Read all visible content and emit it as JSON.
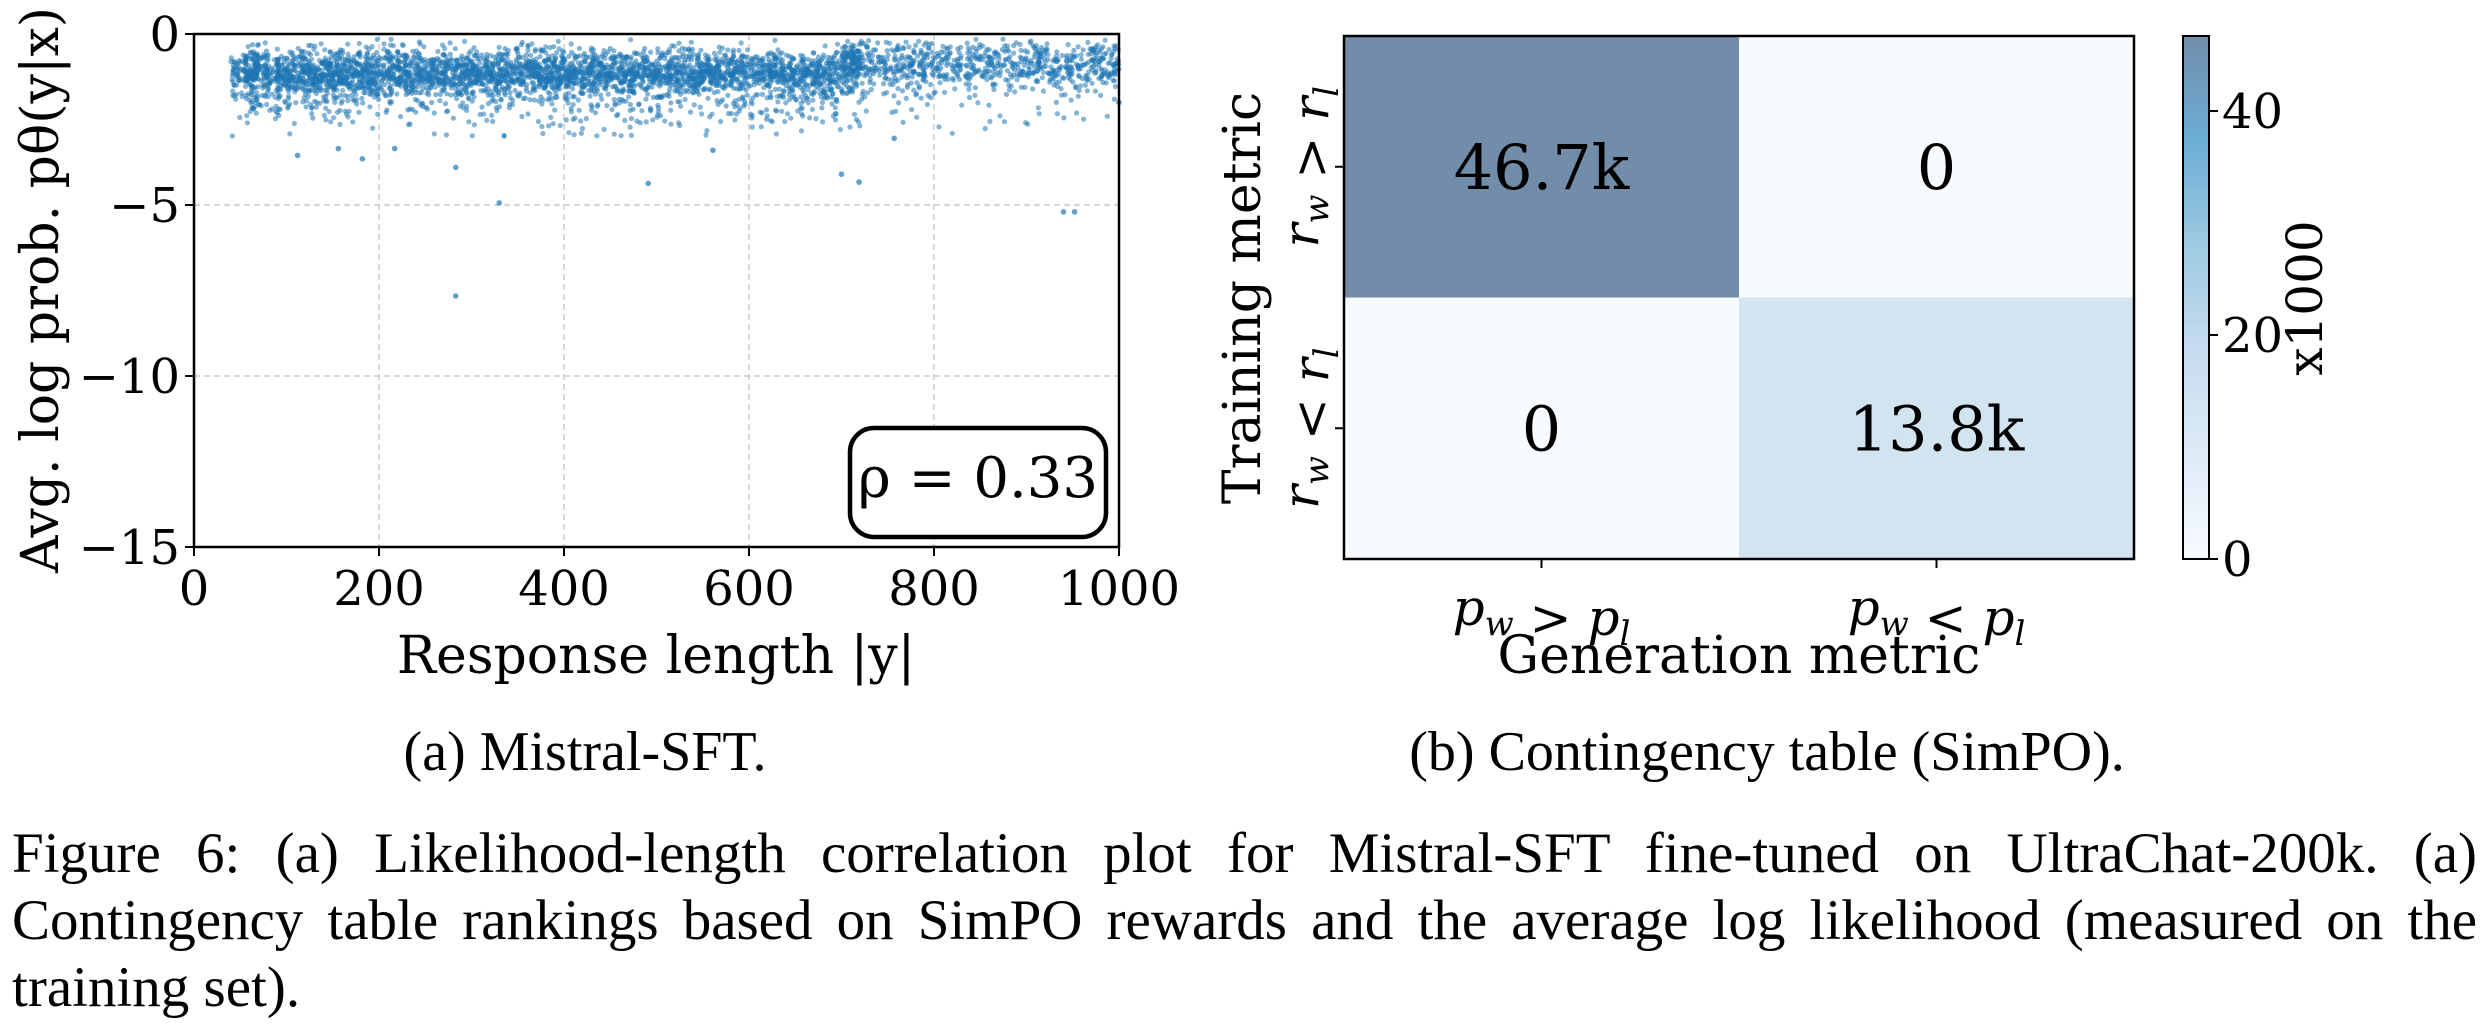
{
  "chart_data": [
    {
      "type": "scatter",
      "panel": "a",
      "xlabel": "Response length |y|",
      "ylabel": "Avg. log prob. pθ(y|x)",
      "xlim": [
        0,
        1000
      ],
      "ylim": [
        -15,
        0
      ],
      "xticks": [
        0,
        200,
        400,
        600,
        800,
        1000
      ],
      "xtick_labels": [
        "0",
        "200",
        "400",
        "600",
        "800",
        "1000"
      ],
      "yticks": [
        0,
        -5,
        -10,
        -15
      ],
      "ytick_labels": [
        "0",
        "−5",
        "−10",
        "−15"
      ],
      "grid": true,
      "marker_color": "#1f77b4",
      "annotation": "ρ = 0.33",
      "annotation_placement": "bottom-right",
      "bulk_distribution": {
        "x_range": [
          40,
          1000
        ],
        "y_center": -1.1,
        "y_spread_upper": 0.7,
        "y_tail_lower": -3.0,
        "approx_point_count": 4500
      },
      "outliers": [
        {
          "x": 283,
          "y": -3.9
        },
        {
          "x": 330,
          "y": -4.94
        },
        {
          "x": 283,
          "y": -7.66
        },
        {
          "x": 491,
          "y": -4.37
        },
        {
          "x": 561,
          "y": -3.4
        },
        {
          "x": 700,
          "y": -4.1
        },
        {
          "x": 719,
          "y": -4.33
        },
        {
          "x": 940,
          "y": -5.2
        },
        {
          "x": 952,
          "y": -5.2
        },
        {
          "x": 112,
          "y": -3.55
        },
        {
          "x": 182,
          "y": -3.65
        },
        {
          "x": 156,
          "y": -3.35
        },
        {
          "x": 217,
          "y": -3.35
        },
        {
          "x": 757,
          "y": -3.05
        },
        {
          "x": 1000,
          "y": -2.0
        }
      ]
    },
    {
      "type": "heatmap",
      "panel": "b",
      "xlabel": "Generation metric",
      "ylabel": "Training metric",
      "x_categories": [
        "p_w > p_l",
        "p_w < p_l"
      ],
      "y_categories": [
        "r_w > r_l",
        "r_w < r_l"
      ],
      "values": [
        [
          46700,
          0
        ],
        [
          0,
          13800
        ]
      ],
      "cell_labels": [
        [
          "46.7k",
          "0"
        ],
        [
          "0",
          "13.8k"
        ]
      ],
      "colorbar": {
        "label": "x1000",
        "range": [
          0,
          46.7
        ],
        "ticks": [
          0,
          20,
          40
        ],
        "tick_labels": [
          "0",
          "20",
          "40"
        ],
        "colors": [
          "#f7fbff",
          "#deebf7",
          "#c6dbef",
          "#9ecae1",
          "#6baed6",
          "#728da9"
        ]
      },
      "cell_colors": [
        [
          "#728da9",
          "#f8fbfe"
        ],
        [
          "#f8fbfe",
          "#d3e4f1"
        ]
      ]
    }
  ],
  "subcaptions": {
    "a": "(a) Mistral-SFT.",
    "b": "(b) Contingency table (SimPO)."
  },
  "caption": "Figure 6: (a) Likelihood-length correlation plot for Mistral-SFT fine-tuned on UltraChat-200k. (a) Contingency table rankings based on SimPO rewards and the average log likelihood (measured on the training set)."
}
